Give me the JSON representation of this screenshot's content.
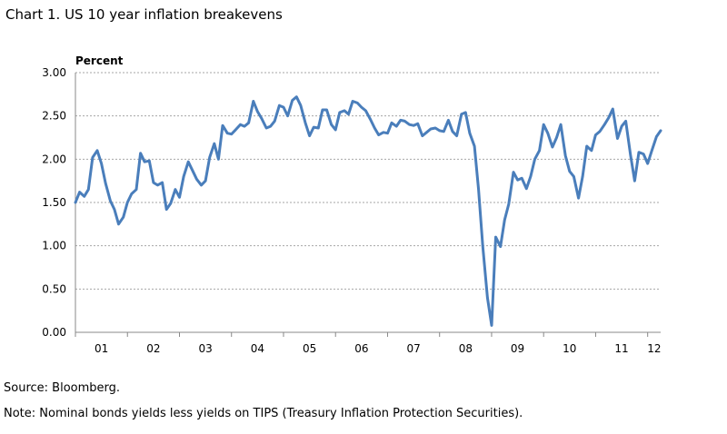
{
  "title": "Chart 1.  US 10 year inflation breakevens",
  "source": "Source: Bloomberg.",
  "note": "Note:  Nominal bonds yields less yields on TIPS (Treasury Inflation Protection Securities).",
  "chart_data": {
    "type": "line",
    "ylabel": "Percent",
    "ylim": [
      0,
      3
    ],
    "yticks": [
      "0.00",
      "0.50",
      "1.00",
      "1.50",
      "2.00",
      "2.50",
      "3.00"
    ],
    "xlim": [
      2001.0,
      2012.25
    ],
    "xticks": [
      "01",
      "02",
      "03",
      "04",
      "05",
      "06",
      "07",
      "08",
      "09",
      "10",
      "11",
      "12"
    ],
    "grid": true,
    "line_color": "#4a7ebb",
    "series": [
      {
        "x": [
          2001.0,
          2001.08,
          2001.17,
          2001.25,
          2001.33,
          2001.42,
          2001.5,
          2001.58,
          2001.67,
          2001.75,
          2001.83,
          2001.92,
          2002.0,
          2002.08,
          2002.17,
          2002.25,
          2002.33,
          2002.42,
          2002.5,
          2002.58,
          2002.67,
          2002.75,
          2002.83,
          2002.92,
          2003.0,
          2003.08,
          2003.17,
          2003.25,
          2003.33,
          2003.42,
          2003.5,
          2003.58,
          2003.67,
          2003.75,
          2003.83,
          2003.92,
          2004.0,
          2004.08,
          2004.17,
          2004.25,
          2004.33,
          2004.42,
          2004.5,
          2004.58,
          2004.67,
          2004.75,
          2004.83,
          2004.92,
          2005.0,
          2005.08,
          2005.17,
          2005.25,
          2005.33,
          2005.42,
          2005.5,
          2005.58,
          2005.67,
          2005.75,
          2005.83,
          2005.92,
          2006.0,
          2006.08,
          2006.17,
          2006.25,
          2006.33,
          2006.42,
          2006.5,
          2006.58,
          2006.67,
          2006.75,
          2006.83,
          2006.92,
          2007.0,
          2007.08,
          2007.17,
          2007.25,
          2007.33,
          2007.42,
          2007.5,
          2007.58,
          2007.67,
          2007.75,
          2007.83,
          2007.92,
          2008.0,
          2008.08,
          2008.17,
          2008.25,
          2008.33,
          2008.42,
          2008.5,
          2008.58,
          2008.67,
          2008.75,
          2008.83,
          2008.92,
          2009.0,
          2009.08,
          2009.17,
          2009.25,
          2009.33,
          2009.42,
          2009.5,
          2009.58,
          2009.67,
          2009.75,
          2009.83,
          2009.92,
          2010.0,
          2010.08,
          2010.17,
          2010.25,
          2010.33,
          2010.42,
          2010.5,
          2010.58,
          2010.67,
          2010.75,
          2010.83,
          2010.92,
          2011.0,
          2011.08,
          2011.17,
          2011.25,
          2011.33,
          2011.42,
          2011.5,
          2011.58,
          2011.67,
          2011.75,
          2011.83,
          2011.92,
          2012.0,
          2012.08,
          2012.17,
          2012.25
        ],
        "values": [
          1.5,
          1.62,
          1.57,
          1.65,
          2.02,
          2.1,
          1.95,
          1.72,
          1.52,
          1.42,
          1.25,
          1.33,
          1.5,
          1.6,
          1.65,
          2.07,
          1.97,
          1.98,
          1.73,
          1.7,
          1.73,
          1.42,
          1.49,
          1.65,
          1.56,
          1.8,
          1.97,
          1.87,
          1.77,
          1.7,
          1.75,
          2.02,
          2.18,
          2.0,
          2.39,
          2.3,
          2.29,
          2.34,
          2.4,
          2.38,
          2.42,
          2.67,
          2.55,
          2.47,
          2.36,
          2.38,
          2.44,
          2.62,
          2.6,
          2.5,
          2.68,
          2.72,
          2.62,
          2.42,
          2.27,
          2.37,
          2.36,
          2.57,
          2.57,
          2.4,
          2.34,
          2.54,
          2.56,
          2.52,
          2.67,
          2.65,
          2.6,
          2.56,
          2.46,
          2.36,
          2.28,
          2.31,
          2.3,
          2.42,
          2.38,
          2.45,
          2.44,
          2.4,
          2.39,
          2.41,
          2.27,
          2.31,
          2.35,
          2.36,
          2.33,
          2.32,
          2.45,
          2.32,
          2.27,
          2.52,
          2.54,
          2.3,
          2.15,
          1.65,
          1.0,
          0.4,
          0.08,
          1.1,
          0.99,
          1.3,
          1.48,
          1.85,
          1.76,
          1.78,
          1.66,
          1.8,
          2.0,
          2.1,
          2.4,
          2.3,
          2.14,
          2.25,
          2.4,
          2.04,
          1.86,
          1.8,
          1.55,
          1.8,
          2.15,
          2.1,
          2.28,
          2.32,
          2.4,
          2.48,
          2.58,
          2.24,
          2.38,
          2.44,
          2.05,
          1.75,
          2.08,
          2.06,
          1.95,
          2.1,
          2.26,
          2.33
        ]
      }
    ]
  }
}
